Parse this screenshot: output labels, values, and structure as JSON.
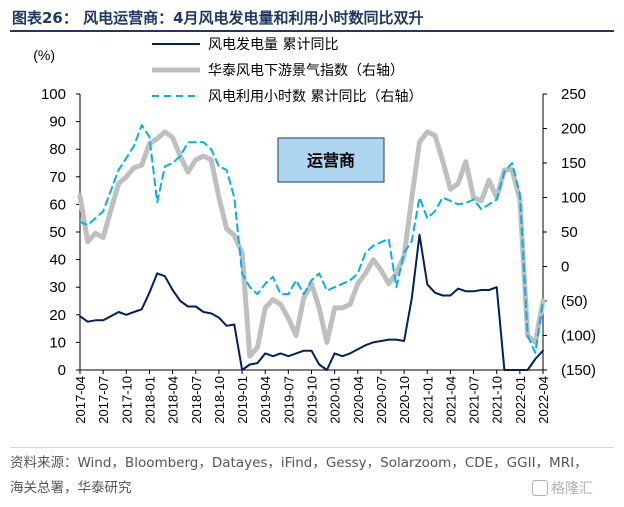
{
  "title": "图表26：  风电运营商：4月风电发电量和利用小时数同比双升",
  "source": "资料来源：Wind，Bloomberg，Datayes，iFind，Gessy，Solarzoom，CDE，GGII，MRI，海关总署，华泰研究",
  "watermark": "格隆汇",
  "colors": {
    "navy": "#002060",
    "gray": "#bfbfbf",
    "cyan": "#00b0f0",
    "title": "#1f3864",
    "box_fill": "#aed6f1"
  },
  "chart_data": {
    "type": "line",
    "left_unit": "(%)",
    "annotation": "运营商",
    "left_axis": {
      "range": [
        0,
        100
      ],
      "ticks": [
        0,
        10,
        20,
        30,
        40,
        50,
        60,
        70,
        80,
        90,
        100
      ]
    },
    "right_axis": {
      "range": [
        -150,
        250
      ],
      "ticks": [
        -150,
        -100,
        -50,
        0,
        50,
        100,
        150,
        200,
        250
      ],
      "tick_labels": [
        "(150)",
        "(100)",
        "(50)",
        "0",
        "50",
        "100",
        "150",
        "200",
        "250"
      ]
    },
    "x": [
      "2017-04",
      "2017-05",
      "2017-06",
      "2017-07",
      "2017-08",
      "2017-09",
      "2017-10",
      "2017-11",
      "2017-12",
      "2018-01",
      "2018-02",
      "2018-03",
      "2018-04",
      "2018-05",
      "2018-06",
      "2018-07",
      "2018-08",
      "2018-09",
      "2018-10",
      "2018-11",
      "2018-12",
      "2019-01",
      "2019-02",
      "2019-03",
      "2019-04",
      "2019-05",
      "2019-06",
      "2019-07",
      "2019-08",
      "2019-09",
      "2019-10",
      "2019-11",
      "2019-12",
      "2020-01",
      "2020-02",
      "2020-03",
      "2020-04",
      "2020-05",
      "2020-06",
      "2020-07",
      "2020-08",
      "2020-09",
      "2020-10",
      "2020-11",
      "2020-12",
      "2021-01",
      "2021-02",
      "2021-03",
      "2021-04",
      "2021-05",
      "2021-06",
      "2021-07",
      "2021-08",
      "2021-09",
      "2021-10",
      "2021-11",
      "2021-12",
      "2022-01",
      "2022-02",
      "2022-03",
      "2022-04"
    ],
    "x_tick_labels": [
      "2017-04",
      "2017-07",
      "2017-10",
      "2018-01",
      "2018-04",
      "2018-07",
      "2018-10",
      "2019-01",
      "2019-04",
      "2019-07",
      "2019-10",
      "2020-01",
      "2020-04",
      "2020-07",
      "2020-10",
      "2021-01",
      "2021-04",
      "2021-07",
      "2021-10",
      "2022-01",
      "2022-04"
    ],
    "legend_position": "top-center",
    "series": [
      {
        "name": "风电发电量 累计同比",
        "axis": "left",
        "style": "solid-thin",
        "values": [
          19.5,
          17.5,
          18,
          18,
          19.5,
          21,
          20,
          21,
          22,
          28,
          35,
          34,
          29,
          25,
          23,
          23,
          21,
          20.5,
          19,
          16,
          16.5,
          0,
          2,
          2.5,
          6,
          5,
          6,
          5,
          6,
          7,
          7,
          2,
          0,
          6,
          5,
          6,
          7.5,
          9,
          10,
          10.5,
          11,
          11,
          10.5,
          26,
          49,
          31,
          28,
          27,
          27,
          29.5,
          28.5,
          28.5,
          29,
          29,
          30,
          0,
          0,
          0,
          0,
          4,
          7
        ]
      },
      {
        "name": "华泰风电下游景气指数（右轴）",
        "axis": "right",
        "style": "solid-thick",
        "values": [
          102,
          36,
          48,
          42,
          82,
          120,
          130,
          143,
          147,
          178,
          185,
          195,
          187,
          160,
          137,
          155,
          160,
          155,
          100,
          55,
          45,
          20,
          -130,
          -117,
          -60,
          -48,
          -55,
          -75,
          -100,
          -45,
          -25,
          -60,
          -110,
          -60,
          -60,
          -55,
          -25,
          -10,
          10,
          -5,
          -25,
          -10,
          15,
          100,
          180,
          195,
          190,
          153,
          112,
          120,
          152,
          100,
          95,
          125,
          100,
          140,
          140,
          97,
          -100,
          -110,
          -50
        ]
      },
      {
        "name": "风电利用小时数 累计同比（右轴）",
        "axis": "right",
        "style": "dashed",
        "values": [
          65,
          60,
          70,
          80,
          110,
          140,
          157,
          175,
          205,
          188,
          93,
          145,
          150,
          160,
          180,
          180,
          180,
          170,
          145,
          140,
          100,
          -10,
          -30,
          -40,
          -25,
          -15,
          -40,
          -40,
          -20,
          -40,
          -20,
          -10,
          -35,
          -30,
          -25,
          -20,
          -10,
          20,
          30,
          35,
          40,
          -30,
          20,
          37,
          100,
          70,
          80,
          100,
          95,
          90,
          92,
          97,
          83,
          90,
          97,
          137,
          150,
          104,
          -100,
          -125,
          -50
        ]
      }
    ]
  }
}
